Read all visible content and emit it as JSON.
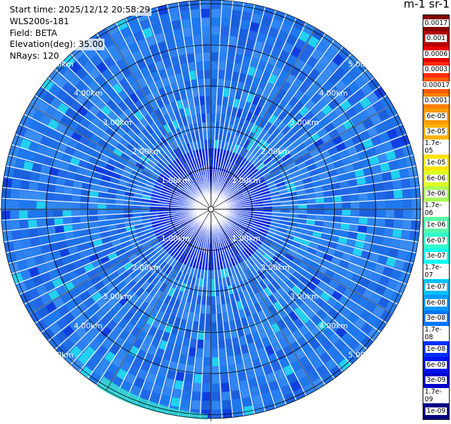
{
  "info": {
    "start_time": "Start time: 2025/12/12 20:58:29",
    "instrument": "WLS200s-181",
    "field": "Field: BETA",
    "elevation": "Elevation(deg): 35.00",
    "nrays": "NRays: 120"
  },
  "colorbar": {
    "title": "m-1 sr-1",
    "labels": [
      "0.0017",
      "0.001",
      "0.0006",
      "0.0003",
      "0.00017",
      "0.0001",
      "6e-05",
      "3e-05",
      "1.7e-05",
      "1e-05",
      "6e-06",
      "3e-06",
      "1.7e-06",
      "1e-06",
      "6e-07",
      "3e-07",
      "1.7e-07",
      "1e-07",
      "6e-08",
      "3e-08",
      "1.7e-08",
      "1e-08",
      "6e-09",
      "3e-09",
      "1.7e-09",
      "1e-09"
    ],
    "colors": [
      "#800000",
      "#b30000",
      "#e60000",
      "#ff2a00",
      "#ff5a00",
      "#ff7f00",
      "#ff9a00",
      "#ffb300",
      "#ffcc00",
      "#ffe600",
      "#ddff22",
      "#aaff55",
      "#77ff88",
      "#55ffaa",
      "#33ffcc",
      "#11ffee",
      "#00e5ff",
      "#00bfff",
      "#0099ff",
      "#0073ff",
      "#0050ff",
      "#002dff",
      "#0010ee",
      "#0000cc",
      "#0000a0",
      "#000080"
    ]
  },
  "ring_labels": [
    "1.00km",
    "2.00km",
    "3.00km",
    "4.00km",
    "5.00km"
  ]
}
